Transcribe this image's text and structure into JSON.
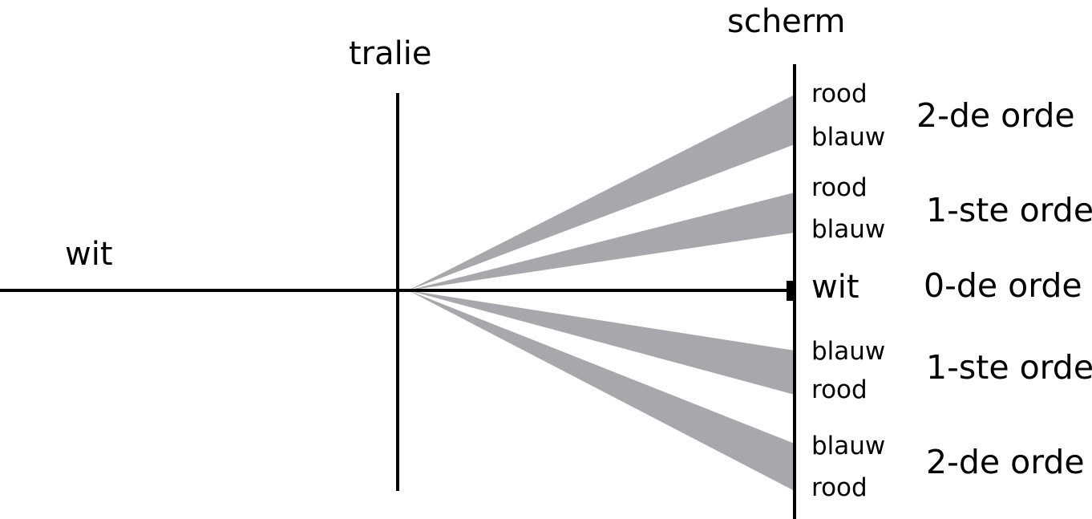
{
  "labels": {
    "incoming": "wit",
    "grating": "tralie",
    "screen": "scherm"
  },
  "colors": {
    "beam_fill": "#a7a8ac",
    "line": "#000000",
    "background": "#ffffff"
  },
  "orders": [
    {
      "first_color": "rood",
      "second_color": "blauw",
      "order_label": "2-de orde"
    },
    {
      "first_color": "rood",
      "second_color": "blauw",
      "order_label": "1-ste orde"
    },
    {
      "center_color": "wit",
      "order_label": "0-de orde"
    },
    {
      "first_color": "blauw",
      "second_color": "rood",
      "order_label": "1-ste orde"
    },
    {
      "first_color": "blauw",
      "second_color": "rood",
      "order_label": "2-de orde"
    }
  ]
}
